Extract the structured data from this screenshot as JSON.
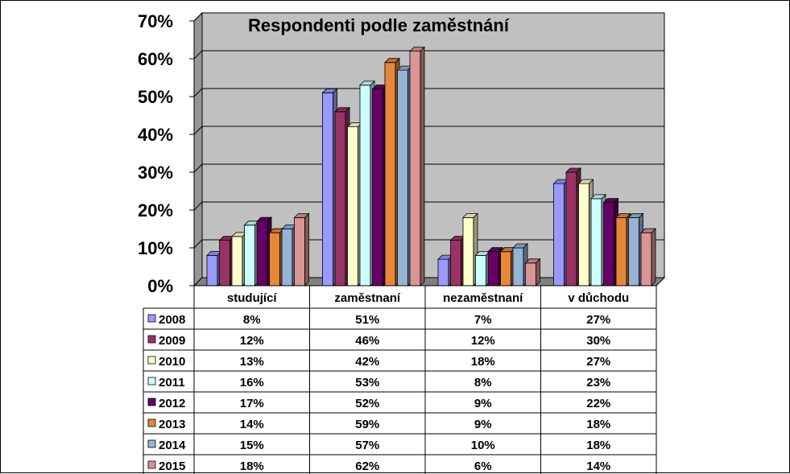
{
  "chart_data": {
    "type": "bar",
    "title": "Respondenti podle zaměstnání",
    "categories": [
      "studující",
      "zaměstnaní",
      "nezaměstnaní",
      "v důchodu"
    ],
    "y_ticks": [
      "0%",
      "10%",
      "20%",
      "30%",
      "40%",
      "50%",
      "60%",
      "70%"
    ],
    "ylim": [
      0,
      70
    ],
    "unit": "%",
    "grid": true,
    "legend": "data table below chart",
    "series": [
      {
        "name": "2008",
        "color": "#9999FF",
        "values": [
          8,
          51,
          7,
          27
        ],
        "labels": [
          "8%",
          "51%",
          "7%",
          "27%"
        ]
      },
      {
        "name": "2009",
        "color": "#993366",
        "values": [
          12,
          46,
          12,
          30
        ],
        "labels": [
          "12%",
          "46%",
          "12%",
          "30%"
        ]
      },
      {
        "name": "2010",
        "color": "#FFFFCC",
        "values": [
          13,
          42,
          18,
          27
        ],
        "labels": [
          "13%",
          "42%",
          "18%",
          "27%"
        ]
      },
      {
        "name": "2011",
        "color": "#CCFFFF",
        "values": [
          16,
          53,
          8,
          23
        ],
        "labels": [
          "16%",
          "53%",
          "8%",
          "23%"
        ]
      },
      {
        "name": "2012",
        "color": "#660066",
        "values": [
          17,
          52,
          9,
          22
        ],
        "labels": [
          "17%",
          "52%",
          "9%",
          "22%"
        ]
      },
      {
        "name": "2013",
        "color": "#E6873A",
        "values": [
          14,
          59,
          9,
          18
        ],
        "labels": [
          "14%",
          "59%",
          "9%",
          "18%"
        ]
      },
      {
        "name": "2014",
        "color": "#95B3D7",
        "values": [
          15,
          57,
          10,
          18
        ],
        "labels": [
          "15%",
          "57%",
          "10%",
          "18%"
        ]
      },
      {
        "name": "2015",
        "color": "#D99594",
        "values": [
          18,
          62,
          6,
          14
        ],
        "labels": [
          "18%",
          "62%",
          "6%",
          "14%"
        ]
      }
    ]
  },
  "colors": {
    "plot_back": "#C0C0C0",
    "side_wall": "#969696",
    "floor": "#808080",
    "gridline": "#000000"
  }
}
